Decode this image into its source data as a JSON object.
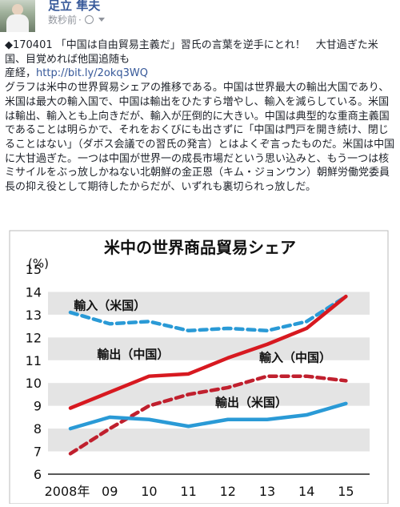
{
  "post": {
    "author": "足立 隼夫",
    "time": "数秒前",
    "visibility_icon": "globe-icon",
    "menu_icon": "chevron-down-icon",
    "headline": "◆170401 「中国は自由貿易主義だ」習氏の言葉を逆手にとれ！　大甘過ぎた米国、目覚めれば他国追随も",
    "source_prefix": "産経，",
    "link": "http://bit.ly/2okq3WQ",
    "body": "グラフは米中の世界貿易シェアの推移である。中国は世界最大の輸出大国であり、米国は最大の輸入国で、中国は輸出をひたすら増やし、輸入を減らしている。米国は輸出、輸入とも上向きだが、輸入が圧倒的に大きい。中国は典型的な重商主義国であることは明らかで、それをおくびにも出さずに「中国は門戸を開き続け、閉じることはない」（ダボス会議での習氏の発言）とはよくぞ言ったものだ。米国は中国に大甘過ぎた。一つは中国が世界一の成長市場だという思い込みと、もう一つは核ミサイルをぶっ放しかねない北朝鮮の金正恩（キム・ジョンウン）朝鮮労働党委員長の抑え役として期待したからだが、いずれも裏切られっ放しだ。"
  },
  "chart_data": {
    "type": "line",
    "title": "米中の世界商品貿易シェア",
    "ylabel": "(%)",
    "ylim": [
      6,
      15
    ],
    "yticks": [
      "6",
      "7",
      "8",
      "9",
      "10",
      "11",
      "12",
      "13",
      "14",
      "15"
    ],
    "x": [
      "2008年",
      "09",
      "10",
      "11",
      "12",
      "13",
      "14",
      "15"
    ],
    "grid": "bands",
    "series": [
      {
        "name": "輸入（米国）",
        "color": "#2a9ad6",
        "dash": true,
        "values": [
          13.1,
          12.6,
          12.7,
          12.3,
          12.4,
          12.3,
          12.7,
          13.8
        ]
      },
      {
        "name": "輸出（中国）",
        "color": "#d71920",
        "dash": false,
        "values": [
          8.9,
          9.6,
          10.3,
          10.4,
          11.1,
          11.7,
          12.4,
          13.8
        ]
      },
      {
        "name": "輸入（中国）",
        "color": "#c0202e",
        "dash": true,
        "values": [
          6.9,
          8.0,
          9.0,
          9.5,
          9.8,
          10.3,
          10.3,
          10.1
        ]
      },
      {
        "name": "輸出（米国）",
        "color": "#2a9ad6",
        "dash": false,
        "values": [
          8.0,
          8.5,
          8.4,
          8.1,
          8.4,
          8.4,
          8.6,
          9.1
        ]
      }
    ]
  }
}
